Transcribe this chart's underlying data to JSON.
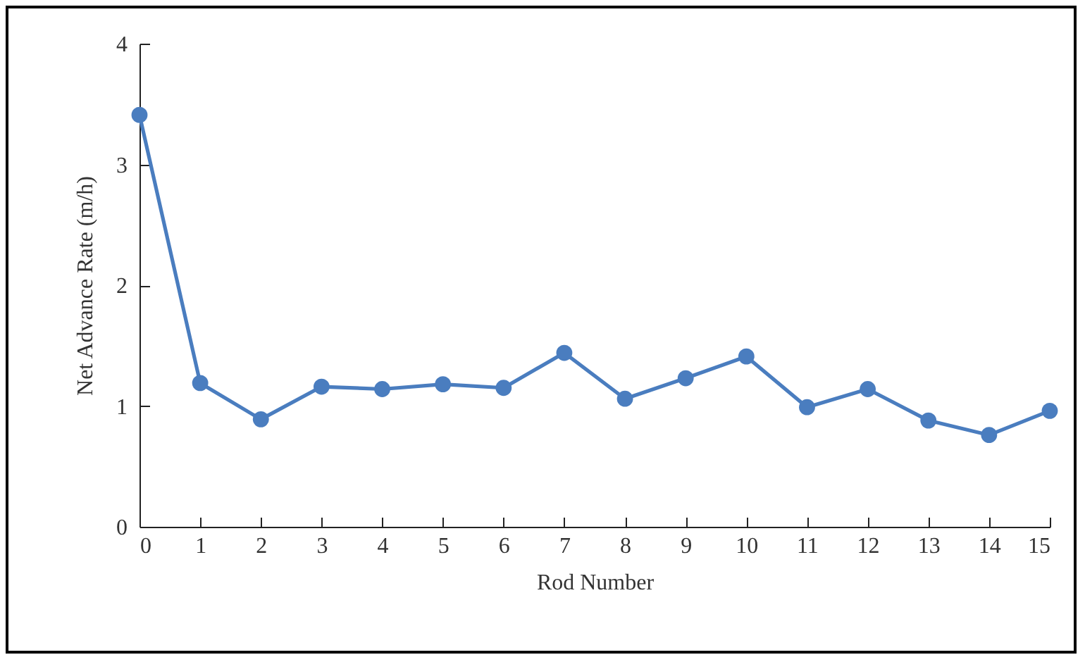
{
  "chart_data": {
    "type": "line",
    "xlabel": "Rod Number",
    "ylabel": "Net Advance Rate (m/h)",
    "x": [
      0,
      1,
      2,
      3,
      4,
      5,
      6,
      7,
      8,
      9,
      10,
      11,
      12,
      13,
      14,
      15
    ],
    "series": [
      {
        "color": "#4a7dbf",
        "values": [
          3.41,
          1.19,
          0.89,
          1.16,
          1.14,
          1.18,
          1.15,
          1.44,
          1.06,
          1.23,
          1.41,
          0.99,
          1.14,
          0.88,
          0.76,
          0.96
        ]
      }
    ],
    "xlim": [
      0,
      15
    ],
    "xticks": [
      0,
      1,
      2,
      3,
      4,
      5,
      6,
      7,
      8,
      9,
      10,
      11,
      12,
      13,
      14,
      15
    ],
    "ylim": [
      0,
      4
    ],
    "yticks": [
      0,
      1,
      2,
      3,
      4
    ],
    "grid": false,
    "legend": false,
    "marker": "circle",
    "line_style": "solid"
  }
}
